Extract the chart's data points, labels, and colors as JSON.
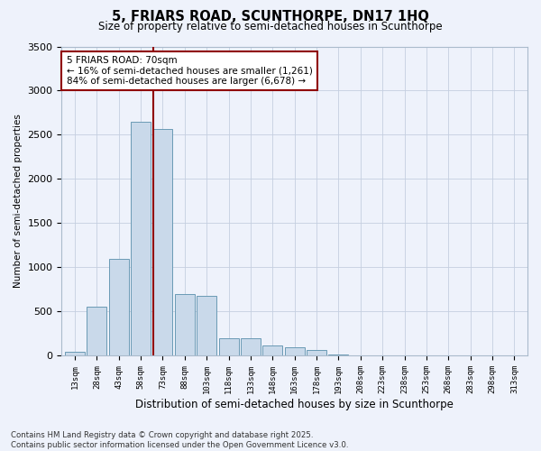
{
  "title": "5, FRIARS ROAD, SCUNTHORPE, DN17 1HQ",
  "subtitle": "Size of property relative to semi-detached houses in Scunthorpe",
  "xlabel": "Distribution of semi-detached houses by size in Scunthorpe",
  "ylabel": "Number of semi-detached properties",
  "property_label": "5 FRIARS ROAD: 70sqm",
  "pct_smaller": 16,
  "pct_larger": 84,
  "count_smaller": 1261,
  "count_larger": 6678,
  "bar_categories": [
    "13sqm",
    "28sqm",
    "43sqm",
    "58sqm",
    "73sqm",
    "88sqm",
    "103sqm",
    "118sqm",
    "133sqm",
    "148sqm",
    "163sqm",
    "178sqm",
    "193sqm",
    "208sqm",
    "223sqm",
    "238sqm",
    "253sqm",
    "268sqm",
    "283sqm",
    "298sqm",
    "313sqm"
  ],
  "bar_values": [
    50,
    560,
    1100,
    2650,
    2570,
    700,
    680,
    200,
    195,
    120,
    100,
    65,
    20,
    5,
    3,
    2,
    1,
    1,
    1,
    1,
    0
  ],
  "bar_color": "#c9d9ea",
  "bar_edge_color": "#6a9ab5",
  "vline_color": "#900000",
  "ylim": [
    0,
    3500
  ],
  "yticks": [
    0,
    500,
    1000,
    1500,
    2000,
    2500,
    3000,
    3500
  ],
  "annotation_box_facecolor": "#ffffff",
  "annotation_box_edgecolor": "#900000",
  "background_color": "#eef2fb",
  "grid_color": "#c5cfe0",
  "footer": "Contains HM Land Registry data © Crown copyright and database right 2025.\nContains public sector information licensed under the Open Government Licence v3.0."
}
